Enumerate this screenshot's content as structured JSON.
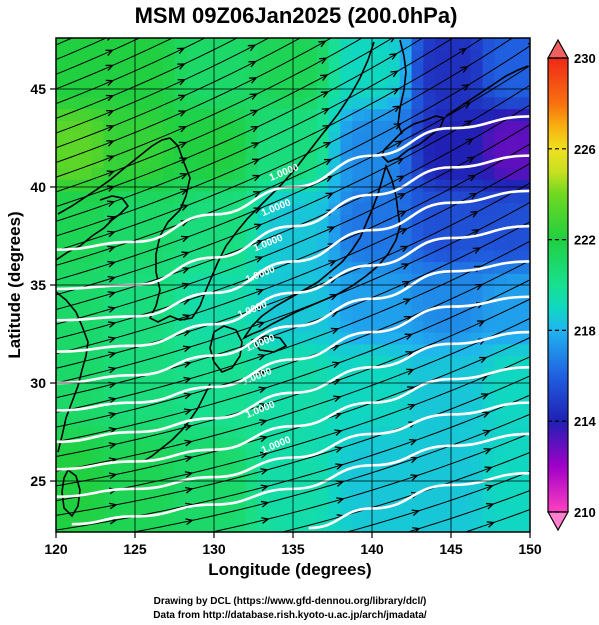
{
  "chart_data": {
    "type": "heatmap",
    "title": "MSM 09Z06Jan2025 (200.0hPa)",
    "xlabel": "Longitude (degrees)",
    "ylabel": "Latitude  (degrees)",
    "xlim": [
      120,
      150
    ],
    "ylim": [
      22.4,
      47.6
    ],
    "x_ticks": [
      120,
      125,
      130,
      135,
      140,
      145,
      150
    ],
    "y_ticks": [
      25,
      30,
      35,
      40,
      45
    ],
    "colorbar": {
      "range": [
        210,
        230
      ],
      "ticks": [
        210,
        214,
        218,
        222,
        226,
        230
      ],
      "stops": [
        {
          "value": 210,
          "color": "#ff40c0"
        },
        {
          "value": 212,
          "color": "#a000c8"
        },
        {
          "value": 214,
          "color": "#2020b4"
        },
        {
          "value": 216,
          "color": "#2060e0"
        },
        {
          "value": 218,
          "color": "#20b4f0"
        },
        {
          "value": 219,
          "color": "#10d8c0"
        },
        {
          "value": 220,
          "color": "#18e090"
        },
        {
          "value": 222,
          "color": "#20d040"
        },
        {
          "value": 224,
          "color": "#70d820"
        },
        {
          "value": 225,
          "color": "#c8e020"
        },
        {
          "value": 226,
          "color": "#f0e020"
        },
        {
          "value": 227,
          "color": "#f8b010"
        },
        {
          "value": 228,
          "color": "#f87010"
        },
        {
          "value": 230,
          "color": "#f02818"
        }
      ]
    },
    "field_samples": [
      {
        "lon": 121,
        "lat": 46,
        "value": 222
      },
      {
        "lon": 125,
        "lat": 46,
        "value": 222
      },
      {
        "lon": 130,
        "lat": 46,
        "value": 221
      },
      {
        "lon": 135,
        "lat": 46,
        "value": 221.5
      },
      {
        "lon": 140,
        "lat": 46,
        "value": 219
      },
      {
        "lon": 145,
        "lat": 46,
        "value": 214.5
      },
      {
        "lon": 149,
        "lat": 46,
        "value": 216
      },
      {
        "lon": 121,
        "lat": 42,
        "value": 223.5
      },
      {
        "lon": 125,
        "lat": 42,
        "value": 222.5
      },
      {
        "lon": 130,
        "lat": 42,
        "value": 222
      },
      {
        "lon": 135,
        "lat": 42,
        "value": 220.5
      },
      {
        "lon": 140,
        "lat": 42,
        "value": 217
      },
      {
        "lon": 145,
        "lat": 42,
        "value": 214
      },
      {
        "lon": 149,
        "lat": 42,
        "value": 213
      },
      {
        "lon": 121,
        "lat": 38,
        "value": 221.5
      },
      {
        "lon": 125,
        "lat": 38,
        "value": 221
      },
      {
        "lon": 130,
        "lat": 38,
        "value": 220.5
      },
      {
        "lon": 135,
        "lat": 38,
        "value": 218.5
      },
      {
        "lon": 140,
        "lat": 38,
        "value": 216.5
      },
      {
        "lon": 145,
        "lat": 38,
        "value": 215.5
      },
      {
        "lon": 149,
        "lat": 38,
        "value": 215.5
      },
      {
        "lon": 121,
        "lat": 34,
        "value": 221
      },
      {
        "lon": 125,
        "lat": 34,
        "value": 220.5
      },
      {
        "lon": 130,
        "lat": 34,
        "value": 219.5
      },
      {
        "lon": 135,
        "lat": 34,
        "value": 218.5
      },
      {
        "lon": 140,
        "lat": 34,
        "value": 217.5
      },
      {
        "lon": 145,
        "lat": 34,
        "value": 217
      },
      {
        "lon": 149,
        "lat": 34,
        "value": 217.5
      },
      {
        "lon": 121,
        "lat": 30,
        "value": 221
      },
      {
        "lon": 125,
        "lat": 30,
        "value": 220.5
      },
      {
        "lon": 130,
        "lat": 30,
        "value": 220
      },
      {
        "lon": 135,
        "lat": 30,
        "value": 219.5
      },
      {
        "lon": 140,
        "lat": 30,
        "value": 219
      },
      {
        "lon": 145,
        "lat": 30,
        "value": 218.5
      },
      {
        "lon": 149,
        "lat": 30,
        "value": 219
      },
      {
        "lon": 121,
        "lat": 25,
        "value": 222
      },
      {
        "lon": 125,
        "lat": 25,
        "value": 221.5
      },
      {
        "lon": 130,
        "lat": 25,
        "value": 221
      },
      {
        "lon": 135,
        "lat": 25,
        "value": 219.5
      },
      {
        "lon": 140,
        "lat": 25,
        "value": 218.5
      },
      {
        "lon": 145,
        "lat": 25,
        "value": 218.5
      },
      {
        "lon": 149,
        "lat": 25,
        "value": 219
      }
    ],
    "contour_label": "1.0000",
    "contours": [
      {
        "level": "c1",
        "points": [
          [
            120,
            36.8
          ],
          [
            125,
            37.2
          ],
          [
            130,
            38.6
          ],
          [
            135,
            40.0
          ],
          [
            140,
            41.6
          ],
          [
            145,
            43.0
          ],
          [
            150,
            43.6
          ]
        ]
      },
      {
        "level": "c2",
        "points": [
          [
            120,
            34.8
          ],
          [
            125,
            35.0
          ],
          [
            130,
            36.4
          ],
          [
            135,
            38.0
          ],
          [
            140,
            39.6
          ],
          [
            145,
            41.0
          ],
          [
            150,
            41.6
          ]
        ]
      },
      {
        "level": "c3",
        "points": [
          [
            120,
            33.2
          ],
          [
            125,
            33.4
          ],
          [
            130,
            34.6
          ],
          [
            135,
            36.2
          ],
          [
            140,
            37.8
          ],
          [
            145,
            39.2
          ],
          [
            150,
            39.8
          ]
        ]
      },
      {
        "level": "c4",
        "points": [
          [
            120,
            31.6
          ],
          [
            125,
            31.9
          ],
          [
            130,
            33.0
          ],
          [
            135,
            34.6
          ],
          [
            140,
            36.0
          ],
          [
            145,
            37.4
          ],
          [
            150,
            38.0
          ]
        ]
      },
      {
        "level": "c5",
        "points": [
          [
            120,
            30.0
          ],
          [
            125,
            30.4
          ],
          [
            130,
            31.4
          ],
          [
            135,
            32.9
          ],
          [
            140,
            34.3
          ],
          [
            145,
            35.7
          ],
          [
            150,
            36.2
          ]
        ]
      },
      {
        "level": "c6",
        "points": [
          [
            120,
            28.6
          ],
          [
            125,
            29.0
          ],
          [
            130,
            29.8
          ],
          [
            135,
            31.2
          ],
          [
            140,
            32.6
          ],
          [
            145,
            33.9
          ],
          [
            150,
            34.4
          ]
        ]
      },
      {
        "level": "c7",
        "points": [
          [
            120,
            27.0
          ],
          [
            125,
            27.5
          ],
          [
            130,
            28.2
          ],
          [
            135,
            29.5
          ],
          [
            140,
            30.8
          ],
          [
            145,
            32.0
          ],
          [
            150,
            32.6
          ]
        ]
      },
      {
        "level": "c8",
        "points": [
          [
            120,
            25.6
          ],
          [
            125,
            26.0
          ],
          [
            130,
            26.6
          ],
          [
            135,
            27.8
          ],
          [
            140,
            29.0
          ],
          [
            145,
            30.2
          ],
          [
            150,
            30.8
          ]
        ]
      },
      {
        "level": "c9",
        "points": [
          [
            120,
            24.2
          ],
          [
            125,
            24.6
          ],
          [
            130,
            25.2
          ],
          [
            135,
            26.2
          ],
          [
            140,
            27.4
          ],
          [
            145,
            28.4
          ],
          [
            150,
            29.0
          ]
        ]
      },
      {
        "level": "c10",
        "points": [
          [
            121,
            22.8
          ],
          [
            125,
            23.2
          ],
          [
            130,
            23.8
          ],
          [
            135,
            24.6
          ],
          [
            140,
            25.8
          ],
          [
            145,
            26.8
          ],
          [
            150,
            27.4
          ]
        ]
      },
      {
        "level": "c11",
        "points": [
          [
            136,
            22.6
          ],
          [
            140,
            23.6
          ],
          [
            145,
            24.8
          ],
          [
            150,
            25.4
          ]
        ]
      }
    ],
    "stream_angle_fn": "to-northeast-with-latitude"
  },
  "footer": {
    "line1": "Drawing by DCL (https://www.gfd-dennou.org/library/dcl/)",
    "line2": "Data from http://database.rish.kyoto-u.ac.jp/arch/jmadata/"
  }
}
